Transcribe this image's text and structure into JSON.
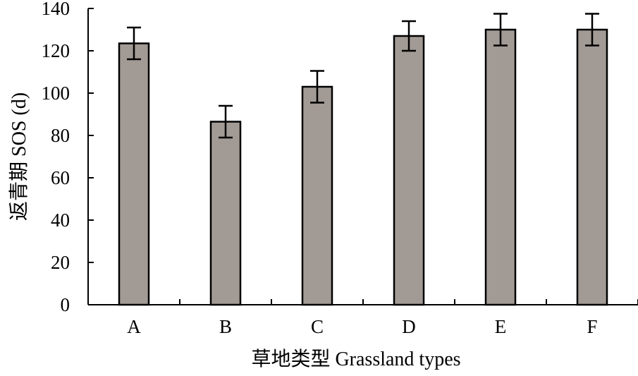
{
  "chart_data": {
    "type": "bar",
    "title": "",
    "categories": [
      "A",
      "B",
      "C",
      "D",
      "E",
      "F"
    ],
    "values": [
      123.5,
      86.5,
      103,
      127,
      130,
      130
    ],
    "errors": [
      7.5,
      7.5,
      7.5,
      7,
      7.5,
      7.5
    ],
    "xlabel": "草地类型 Grassland types",
    "ylabel": "返青期 SOS (d)",
    "ylim": [
      0,
      140
    ],
    "yticks": [
      "0",
      "20",
      "40",
      "60",
      "80",
      "100",
      "120",
      "140"
    ],
    "grid": false,
    "bar_color": "#a29a95",
    "bar_edge_color": "#000000"
  }
}
